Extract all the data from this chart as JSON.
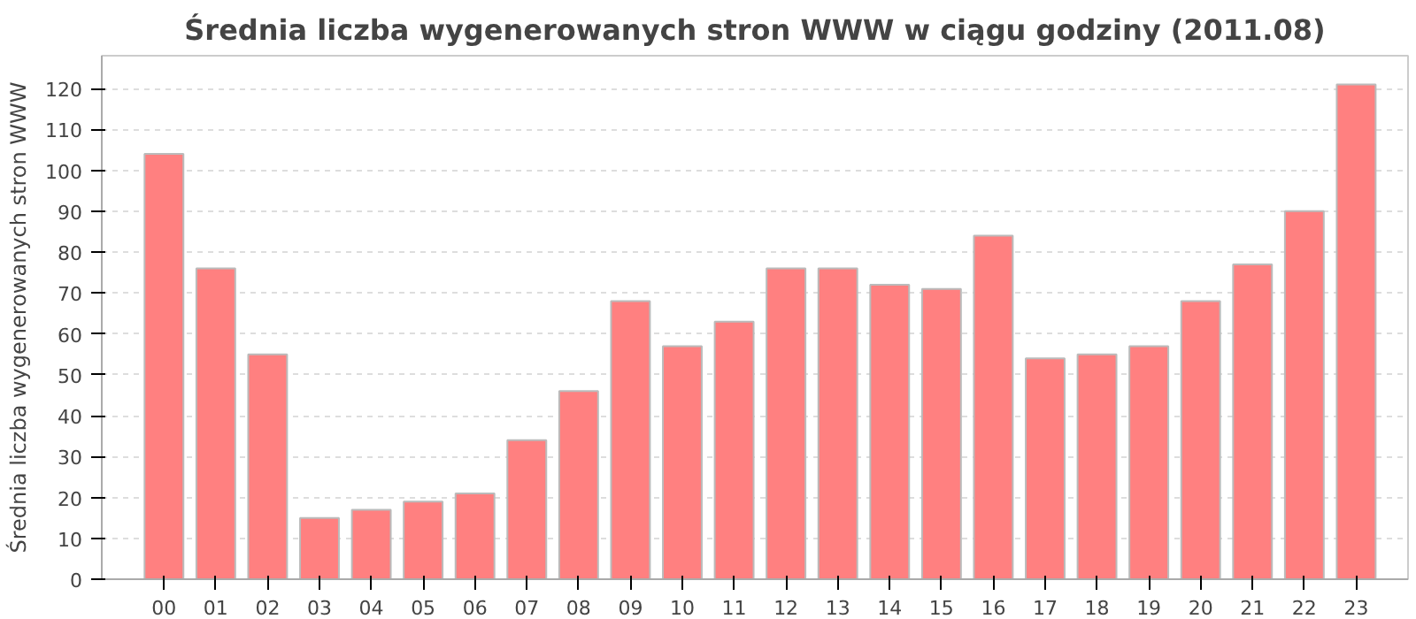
{
  "chart_data": {
    "type": "bar",
    "title": "Średnia liczba wygenerowanych stron WWW w ciągu godziny (2011.08)",
    "ylabel": "Średnia liczba wygenerowanych stron WWW",
    "categories": [
      "00",
      "01",
      "02",
      "03",
      "04",
      "05",
      "06",
      "07",
      "08",
      "09",
      "10",
      "11",
      "12",
      "13",
      "14",
      "15",
      "16",
      "17",
      "18",
      "19",
      "20",
      "21",
      "22",
      "23"
    ],
    "values": [
      104,
      76,
      55,
      15,
      17,
      19,
      21,
      34,
      46,
      68,
      57,
      63,
      76,
      76,
      72,
      71,
      84,
      54,
      55,
      57,
      68,
      77,
      90,
      121
    ],
    "color": "#ff8080",
    "ylim": [
      0,
      128
    ],
    "yticks": [
      0,
      10,
      20,
      30,
      40,
      50,
      60,
      70,
      80,
      90,
      100,
      110,
      120
    ],
    "grid": "y"
  }
}
